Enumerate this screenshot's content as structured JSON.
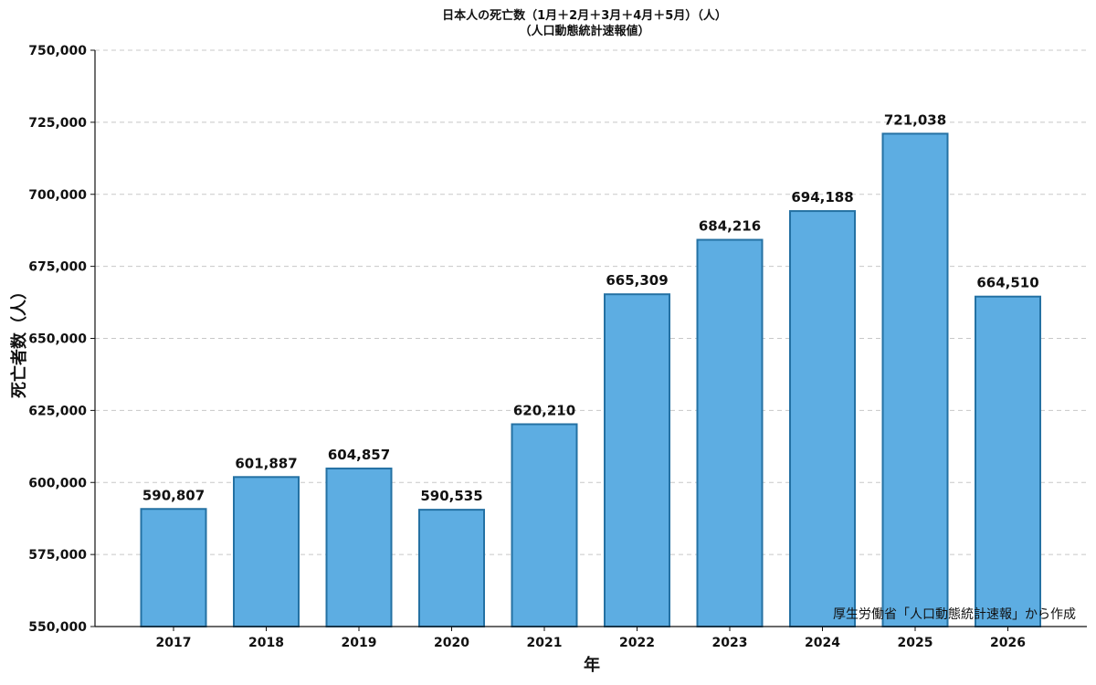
{
  "chart_data": {
    "type": "bar",
    "title": "日本人の死亡数（1月＋2月＋3月＋4月＋5月）（人）",
    "subtitle": "（人口動態統計速報値）",
    "xlabel": "年",
    "ylabel": "死亡者数（人）",
    "categories": [
      "2017",
      "2018",
      "2019",
      "2020",
      "2021",
      "2022",
      "2023",
      "2024",
      "2025",
      "2026"
    ],
    "values": [
      590807,
      601887,
      604857,
      590535,
      620210,
      665309,
      684216,
      694188,
      721038,
      664510
    ],
    "data_labels": [
      "590,807",
      "601,887",
      "604,857",
      "590,535",
      "620,210",
      "665,309",
      "684,216",
      "694,188",
      "721,038",
      "664,510"
    ],
    "ylim": [
      550000,
      750000
    ],
    "yticks": [
      550000,
      575000,
      600000,
      625000,
      650000,
      675000,
      700000,
      725000,
      750000
    ],
    "ytick_labels": [
      "550,000",
      "575,000",
      "600,000",
      "625,000",
      "650,000",
      "675,000",
      "700,000",
      "725,000",
      "750,000"
    ],
    "grid": true,
    "legend": "none",
    "bar_color": "#5dade2",
    "bar_edge_color": "#2471a3",
    "annotation": "厚生労働省「人口動態統計速報」から作成"
  }
}
